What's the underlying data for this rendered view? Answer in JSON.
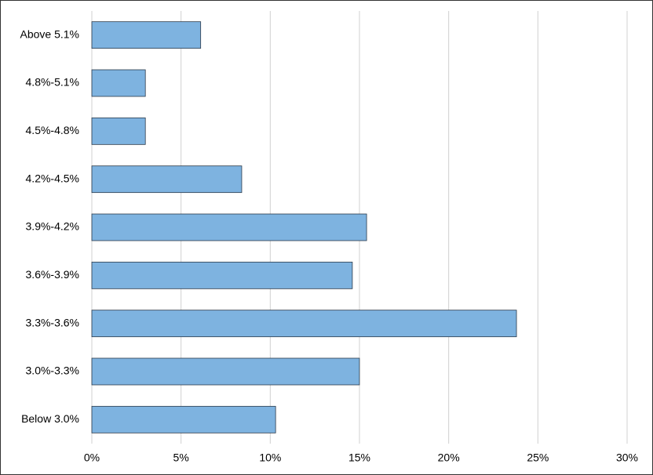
{
  "chart_data": {
    "type": "bar",
    "orientation": "horizontal",
    "categories": [
      "Above 5.1%",
      "4.8%-5.1%",
      "4.5%-4.8%",
      "4.2%-4.5%",
      "3.9%-4.2%",
      "3.6%-3.9%",
      "3.3%-3.6%",
      "3.0%-3.3%",
      "Below 3.0%"
    ],
    "values": [
      6.1,
      3.0,
      3.0,
      8.4,
      15.4,
      14.6,
      23.8,
      15.0,
      10.3
    ],
    "color": "#7eb3e0",
    "xlim": [
      0,
      30
    ],
    "xticks": [
      {
        "value": 0,
        "label": "0%"
      },
      {
        "value": 5,
        "label": "5%"
      },
      {
        "value": 10,
        "label": "10%"
      },
      {
        "value": 15,
        "label": "15%"
      },
      {
        "value": 20,
        "label": "20%"
      },
      {
        "value": 25,
        "label": "25%"
      },
      {
        "value": 30,
        "label": "30%"
      }
    ],
    "grid": true
  }
}
